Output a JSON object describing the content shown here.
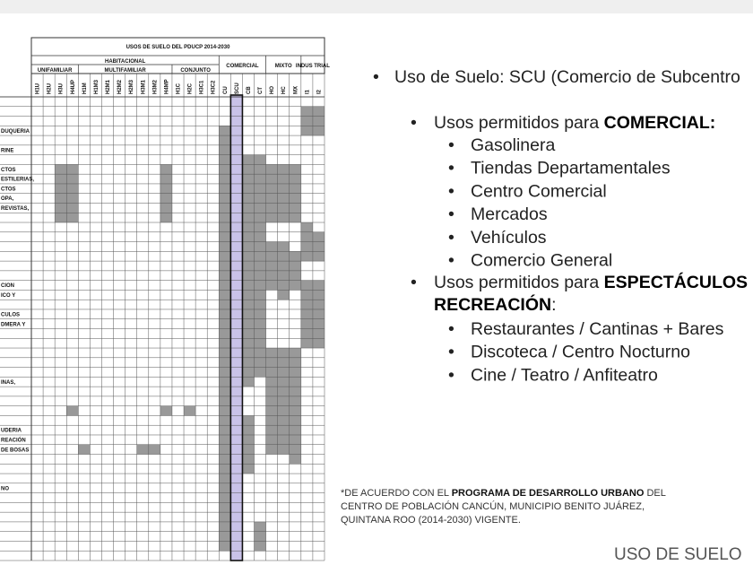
{
  "table": {
    "title": "USOS DE SUELO DEL PDUCP 2014-2030",
    "groups": [
      "HABITACIONAL",
      "COMERCIAL",
      "MIXTO",
      "INDUS TRIAL"
    ],
    "subgroups": [
      "UNIFAMILIAR",
      "MULTIFAMILIAR",
      "CONJUNTO"
    ],
    "columns": [
      "H1U",
      "H2U",
      "H3U",
      "H4UP",
      "H1M",
      "H1M3",
      "H2M1",
      "H2M2",
      "H2M3",
      "H3M1",
      "H3M2",
      "H4MP",
      "H1C",
      "H2C",
      "H3C1",
      "H3C2",
      "CU",
      "SCU",
      "CB",
      "CT",
      "HO",
      "HC",
      "MX",
      "I1",
      "I2"
    ],
    "row_labels": [
      null,
      null,
      null,
      "DUQUERIA",
      null,
      "RINE",
      null,
      "CTOS",
      "ESTILERIAS,",
      "CTOS",
      "OPA,",
      "REVISTAS,",
      null,
      null,
      null,
      null,
      null,
      null,
      null,
      "CION",
      "ICO Y",
      null,
      "CULOS",
      "DMERA Y",
      null,
      null,
      null,
      null,
      null,
      "INAS,",
      null,
      null,
      null,
      null,
      "UDERIA",
      "REACIÓN",
      "DE BOSAS",
      null,
      null,
      null,
      "NO",
      null,
      null,
      null,
      null,
      null,
      null,
      null
    ]
  },
  "content": {
    "heading": "Uso de Suelo: SCU (Comercio de Subcentro",
    "commercial_intro": "Usos permitidos para ",
    "commercial_bold": "COMERCIAL:",
    "commercial_items": [
      "Gasolinera",
      "Tiendas Departamentales",
      "Centro Comercial",
      "Mercados",
      "Vehículos",
      "Comercio General"
    ],
    "shows_intro": "Usos permitidos para ",
    "shows_bold": "ESPECTÁCULOS",
    "shows_bold2": "RECREACIÓN",
    "shows_colon": ":",
    "shows_items": [
      "Restaurantes / Cantinas + Bares",
      "Discoteca / Centro Nocturno",
      "Cine / Teatro / Anfiteatro"
    ]
  },
  "footnote": {
    "line1_a": "*DE ACUERDO CON EL ",
    "line1_b": "PROGRAMA DE DESARROLLO URBANO",
    "line1_c": " DEL",
    "line2": "CENTRO DE POBLACIÓN CANCÚN, MUNICIPIO BENITO JUÁREZ,",
    "line3": "QUINTANA ROO (2014-2030) VIGENTE."
  },
  "footer": "USO DE SUELO"
}
